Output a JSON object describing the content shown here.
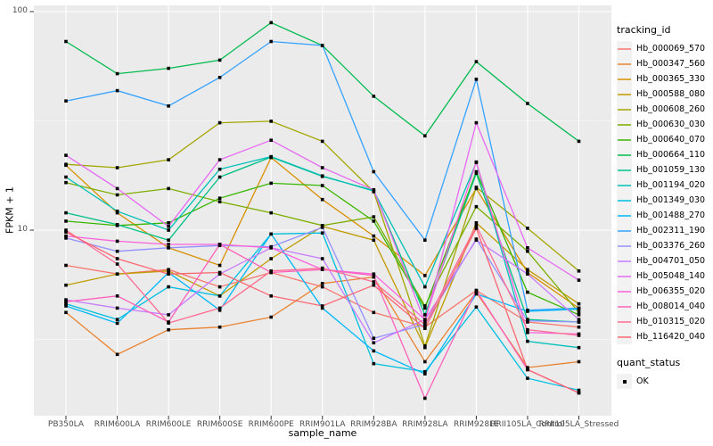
{
  "figure": {
    "panel_bg": "#EBEBEB",
    "grid_color": "#FFFFFF",
    "tick_color": "#333333",
    "tick_label_color": "#4D4D4D",
    "point_color": "#000000",
    "y_axis": {
      "title": "FPKM + 1",
      "scale": "log10",
      "major_ticks": [
        100,
        10
      ],
      "minor_ticks": [
        31.623,
        3.1623
      ]
    },
    "x_axis": {
      "title": "sample_name"
    }
  },
  "legend": {
    "tracking": {
      "title": "tracking_id"
    },
    "quant": {
      "title": "quant_status",
      "items": [
        "OK"
      ]
    }
  },
  "chart_data": {
    "type": "line",
    "x_type": "categorical",
    "y_scale": "log10",
    "xlabel": "sample_name",
    "ylabel": "FPKM + 1",
    "ylim": [
      1.4,
      107
    ],
    "grid": true,
    "legend_position": "right",
    "categories": [
      "PB350LA",
      "RRIM600LA",
      "RRIM600LE",
      "RRIM600SE",
      "RRIM600PE",
      "RRIM901LA",
      "RRIM928BA",
      "RRIM928LA",
      "RRIM928LE",
      "RRII105LA_Control",
      "RRII105LA_Stressed"
    ],
    "series": [
      {
        "name": "Hb_000069_570",
        "color": "#F8766D",
        "values": [
          6.9,
          6.3,
          6.6,
          5.5,
          6.4,
          5.5,
          4.2,
          3.6,
          5.3,
          3.8,
          3.6
        ]
      },
      {
        "name": "Hb_000347_560",
        "color": "#EA8331",
        "values": [
          4.2,
          2.7,
          3.5,
          3.6,
          4.0,
          5.7,
          6.1,
          2.5,
          5.2,
          2.35,
          2.5
        ]
      },
      {
        "name": "Hb_000365_330",
        "color": "#D89000",
        "values": [
          19.8,
          12.0,
          8.3,
          6.9,
          21.5,
          13.8,
          9.4,
          6.2,
          15.5,
          6.4,
          4.4
        ]
      },
      {
        "name": "Hb_000588_080",
        "color": "#C09B00",
        "values": [
          5.6,
          6.3,
          6.5,
          5.0,
          7.4,
          10.4,
          9.0,
          2.9,
          10.8,
          6.6,
          4.6
        ]
      },
      {
        "name": "Hb_000608_260",
        "color": "#A3A500",
        "values": [
          20.0,
          19.3,
          21.0,
          31.0,
          31.5,
          25.5,
          15.0,
          2.95,
          15.7,
          10.2,
          6.5
        ]
      },
      {
        "name": "Hb_000630_030",
        "color": "#7CAE00",
        "values": [
          16.5,
          14.5,
          15.5,
          13.5,
          12.0,
          10.5,
          11.5,
          4.5,
          12.8,
          8.0,
          4.2
        ]
      },
      {
        "name": "Hb_000640_070",
        "color": "#39B600",
        "values": [
          11.0,
          10.5,
          10.8,
          14.0,
          16.4,
          16.0,
          11.0,
          4.4,
          18.5,
          5.2,
          4.1
        ]
      },
      {
        "name": "Hb_000664_110",
        "color": "#00BB4E",
        "values": [
          73,
          52,
          55,
          60,
          89,
          70,
          41,
          27,
          59,
          38,
          25.5
        ]
      },
      {
        "name": "Hb_001059_130",
        "color": "#00C087",
        "values": [
          12.0,
          10.6,
          9.0,
          17.5,
          21.6,
          17.6,
          15.2,
          4.1,
          18.2,
          3.9,
          3.8
        ]
      },
      {
        "name": "Hb_001194_020",
        "color": "#00C0B8",
        "values": [
          17.5,
          12.2,
          10.0,
          19.0,
          21.7,
          17.7,
          15.1,
          5.5,
          20.4,
          3.1,
          2.9
        ]
      },
      {
        "name": "Hb_001349_030",
        "color": "#00BFE0",
        "values": [
          4.6,
          3.9,
          5.5,
          5.0,
          9.6,
          9.7,
          2.45,
          2.25,
          4.45,
          2.1,
          1.85
        ]
      },
      {
        "name": "Hb_001488_270",
        "color": "#00B8F7",
        "values": [
          4.5,
          3.75,
          6.4,
          4.3,
          9.6,
          4.4,
          2.8,
          2.2,
          5.1,
          4.25,
          4.35
        ]
      },
      {
        "name": "Hb_002311_190",
        "color": "#35A2FF",
        "values": [
          39,
          43.5,
          37,
          50,
          73,
          70,
          18.5,
          9.0,
          49,
          4.3,
          4.4
        ]
      },
      {
        "name": "Hb_003376_260",
        "color": "#9590FF",
        "values": [
          9.2,
          8.0,
          8.3,
          8.5,
          8.4,
          10.3,
          3.2,
          3.7,
          9.1,
          3.85,
          3.8
        ]
      },
      {
        "name": "Hb_004701_050",
        "color": "#C77CFF",
        "values": [
          4.8,
          4.4,
          4.1,
          6.3,
          8.3,
          7.4,
          3.05,
          3.9,
          9.0,
          6.3,
          3.9
        ]
      },
      {
        "name": "Hb_005048_140",
        "color": "#E76BF3",
        "values": [
          22,
          15.5,
          10.4,
          21,
          25.8,
          19.3,
          15.3,
          3.8,
          31,
          8.3,
          5.9
        ]
      },
      {
        "name": "Hb_006355_020",
        "color": "#FA62DB",
        "values": [
          9.4,
          8.9,
          8.6,
          8.6,
          8.3,
          6.6,
          6.3,
          3.9,
          20.5,
          3.4,
          3.35
        ]
      },
      {
        "name": "Hb_008014_040",
        "color": "#FF62BC",
        "values": [
          4.7,
          5.0,
          3.8,
          8.6,
          6.4,
          6.6,
          6.2,
          1.7,
          5.3,
          2.3,
          1.8
        ]
      },
      {
        "name": "Hb_010315_020",
        "color": "#FF6C92",
        "values": [
          10.0,
          7.0,
          3.76,
          4.4,
          6.5,
          6.7,
          5.8,
          3.7,
          10.5,
          3.5,
          3.3
        ]
      },
      {
        "name": "Hb_116420_040",
        "color": "#FD6673",
        "values": [
          9.8,
          7.4,
          6.3,
          6.4,
          5.0,
          4.5,
          5.6,
          3.55,
          10.2,
          2.3,
          1.8
        ]
      }
    ]
  }
}
